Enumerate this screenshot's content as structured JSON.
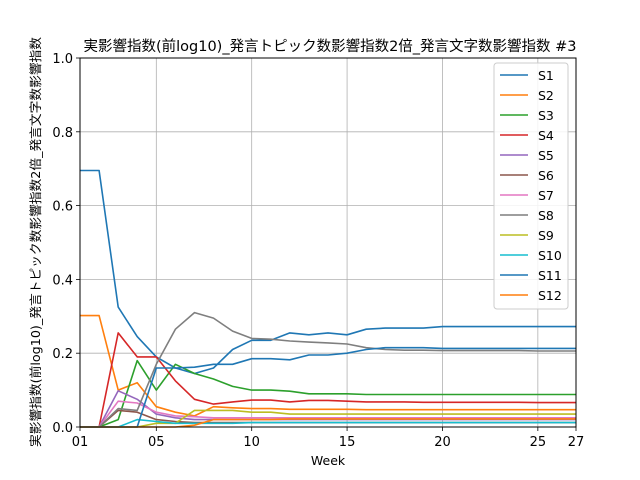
{
  "chart_data": {
    "type": "line",
    "title": "実影響指数(前log10)_発言トピック数影響指数2倍_発言文字数影響指数 #3",
    "xlabel": "Week",
    "ylabel": "実影響指数(前log10)_発言トピック数影響指数2倍_発言文字数影響指数",
    "xlim": [
      1,
      27
    ],
    "ylim": [
      0,
      1.0
    ],
    "grid": true,
    "legend_position": "top-right",
    "x_ticks": [
      {
        "value": 1,
        "label": "01"
      },
      {
        "value": 5,
        "label": "05"
      },
      {
        "value": 10,
        "label": "10"
      },
      {
        "value": 15,
        "label": "15"
      },
      {
        "value": 20,
        "label": "20"
      },
      {
        "value": 25,
        "label": "25"
      },
      {
        "value": 27,
        "label": "27"
      }
    ],
    "y_ticks": [
      {
        "value": 0.0,
        "label": "0.0"
      },
      {
        "value": 0.2,
        "label": "0.2"
      },
      {
        "value": 0.4,
        "label": "0.4"
      },
      {
        "value": 0.6,
        "label": "0.6"
      },
      {
        "value": 0.8,
        "label": "0.8"
      },
      {
        "value": 1.0,
        "label": "1.0"
      }
    ],
    "x": [
      1,
      2,
      3,
      4,
      5,
      6,
      7,
      8,
      9,
      10,
      11,
      12,
      13,
      14,
      15,
      16,
      17,
      18,
      19,
      20,
      21,
      22,
      23,
      24,
      25,
      26,
      27
    ],
    "series": [
      {
        "name": "S1",
        "color": "#1f77b4",
        "values": [
          0.695,
          0.695,
          0.325,
          0.245,
          0.19,
          0.16,
          0.145,
          0.16,
          0.21,
          0.235,
          0.235,
          0.255,
          0.25,
          0.255,
          0.25,
          0.265,
          0.268,
          0.268,
          0.268,
          0.272,
          0.272,
          0.272,
          0.272,
          0.272,
          0.272,
          0.272,
          0.272
        ]
      },
      {
        "name": "S2",
        "color": "#ff7f0e",
        "values": [
          0.302,
          0.302,
          0.1,
          0.12,
          0.055,
          0.04,
          0.03,
          0.055,
          0.052,
          0.05,
          0.05,
          0.048,
          0.048,
          0.048,
          0.048,
          0.047,
          0.047,
          0.047,
          0.047,
          0.047,
          0.047,
          0.047,
          0.047,
          0.047,
          0.047,
          0.047,
          0.047
        ]
      },
      {
        "name": "S3",
        "color": "#2ca02c",
        "values": [
          0,
          0,
          0.02,
          0.18,
          0.1,
          0.17,
          0.145,
          0.13,
          0.11,
          0.1,
          0.1,
          0.097,
          0.09,
          0.09,
          0.09,
          0.088,
          0.088,
          0.088,
          0.088,
          0.088,
          0.088,
          0.088,
          0.088,
          0.088,
          0.088,
          0.088,
          0.088
        ]
      },
      {
        "name": "S4",
        "color": "#d62728",
        "values": [
          0,
          0,
          0.255,
          0.19,
          0.19,
          0.125,
          0.075,
          0.062,
          0.068,
          0.073,
          0.073,
          0.068,
          0.072,
          0.072,
          0.07,
          0.068,
          0.068,
          0.068,
          0.067,
          0.067,
          0.067,
          0.067,
          0.067,
          0.067,
          0.066,
          0.066,
          0.066
        ]
      },
      {
        "name": "S5",
        "color": "#9467bd",
        "values": [
          0,
          0,
          0.098,
          0.075,
          0.035,
          0.025,
          0.02,
          0.02,
          0.02,
          0.02,
          0.02,
          0.02,
          0.02,
          0.02,
          0.02,
          0.02,
          0.02,
          0.02,
          0.02,
          0.02,
          0.02,
          0.02,
          0.02,
          0.02,
          0.02,
          0.02,
          0.02
        ]
      },
      {
        "name": "S6",
        "color": "#8c564b",
        "values": [
          0,
          0,
          0.045,
          0.04,
          0.02,
          0.015,
          0.012,
          0.012,
          0.012,
          0.012,
          0.012,
          0.012,
          0.012,
          0.012,
          0.012,
          0.012,
          0.012,
          0.012,
          0.012,
          0.012,
          0.012,
          0.012,
          0.012,
          0.012,
          0.012,
          0.012,
          0.012
        ]
      },
      {
        "name": "S7",
        "color": "#e377c2",
        "values": [
          0,
          0,
          0.07,
          0.065,
          0.04,
          0.03,
          0.028,
          0.025,
          0.025,
          0.025,
          0.025,
          0.025,
          0.025,
          0.025,
          0.025,
          0.025,
          0.025,
          0.025,
          0.025,
          0.025,
          0.025,
          0.025,
          0.025,
          0.025,
          0.025,
          0.025,
          0.025
        ]
      },
      {
        "name": "S8",
        "color": "#7f7f7f",
        "values": [
          0,
          0,
          0.05,
          0.045,
          0.17,
          0.265,
          0.31,
          0.295,
          0.26,
          0.24,
          0.238,
          0.233,
          0.23,
          0.228,
          0.225,
          0.215,
          0.21,
          0.208,
          0.208,
          0.207,
          0.207,
          0.207,
          0.207,
          0.207,
          0.206,
          0.206,
          0.206
        ]
      },
      {
        "name": "S9",
        "color": "#bcbd22",
        "values": [
          0,
          0,
          0,
          0,
          0.01,
          0.01,
          0.045,
          0.045,
          0.045,
          0.04,
          0.04,
          0.035,
          0.035,
          0.035,
          0.035,
          0.035,
          0.035,
          0.035,
          0.035,
          0.035,
          0.035,
          0.035,
          0.035,
          0.035,
          0.035,
          0.035,
          0.035
        ]
      },
      {
        "name": "S10",
        "color": "#17becf",
        "values": [
          0,
          0,
          0,
          0.02,
          0.015,
          0.01,
          0.01,
          0.01,
          0.01,
          0.012,
          0.012,
          0.012,
          0.012,
          0.012,
          0.012,
          0.012,
          0.012,
          0.012,
          0.012,
          0.012,
          0.012,
          0.012,
          0.012,
          0.012,
          0.012,
          0.012,
          0.012
        ]
      },
      {
        "name": "S11",
        "color": "#1f77b4",
        "values": [
          0,
          0,
          0,
          0,
          0.16,
          0.16,
          0.162,
          0.17,
          0.17,
          0.185,
          0.185,
          0.182,
          0.195,
          0.195,
          0.2,
          0.21,
          0.215,
          0.215,
          0.215,
          0.213,
          0.213,
          0.213,
          0.213,
          0.213,
          0.213,
          0.213,
          0.213
        ]
      },
      {
        "name": "S12",
        "color": "#ff7f0e",
        "values": [
          0,
          0,
          0,
          0,
          0,
          0,
          0.005,
          0.02,
          0.02,
          0.02,
          0.02,
          0.022,
          0.022,
          0.022,
          0.022,
          0.022,
          0.022,
          0.022,
          0.022,
          0.022,
          0.022,
          0.022,
          0.022,
          0.022,
          0.022,
          0.022,
          0.022
        ]
      }
    ]
  }
}
